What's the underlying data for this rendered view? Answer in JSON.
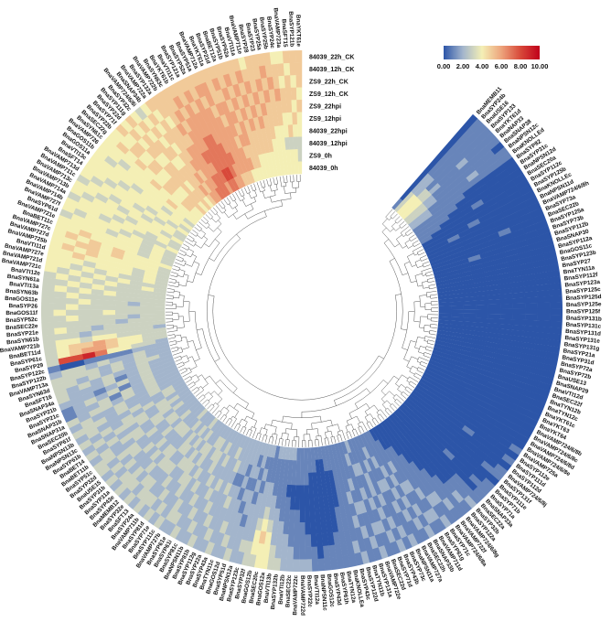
{
  "chart_data": {
    "type": "heatmap",
    "layout": "circular",
    "dendrogram": true,
    "color_scale": {
      "min": 0,
      "max": 10,
      "stops": [
        [
          0,
          "#2c55a8"
        ],
        [
          2,
          "#a3b5cc"
        ],
        [
          4,
          "#f4efb5"
        ],
        [
          6,
          "#eda47c"
        ],
        [
          8,
          "#d8493a"
        ],
        [
          10,
          "#c0001a"
        ]
      ],
      "tick_labels": [
        "0.00",
        "2.00",
        "4.00",
        "6.00",
        "8.00",
        "10.00"
      ],
      "legend_position": "top-right"
    },
    "tracks": [
      "84039_22h_CK",
      "84039_12h_CK",
      "ZS9_22h_CK",
      "ZS9_12h_CK",
      "ZS9_22hpi",
      "ZS9_12hpi",
      "84039_22hpi",
      "84039_12hpi",
      "ZS9_0h",
      "84039_0h"
    ],
    "rows": [
      [
        "BnaMEMB11",
        "0000000001"
      ],
      [
        "BnaSYP24b",
        "1111112233"
      ],
      [
        "BnaUSE16",
        "1111112244"
      ],
      [
        "BnaSYP133",
        "1111111344"
      ],
      [
        "BnaYKT61d",
        "1112112344"
      ],
      [
        "BnaNAP33",
        "1111111233"
      ],
      [
        "BnaSNAP38",
        "0111111233"
      ],
      [
        "BnaNPSN12c",
        "1112111122"
      ],
      [
        "BnaKNOLLEd",
        "1111111122"
      ],
      [
        "BnaSYP82",
        "0000011111"
      ],
      [
        "BnaSYP31c",
        "0000001111"
      ],
      [
        "BnaNPSN12d",
        "0000000111"
      ],
      [
        "BnaSEC20a",
        "0000100011"
      ],
      [
        "BnaSYP112c",
        "0000000001"
      ],
      [
        "BnaSYP125b",
        "0000000000"
      ],
      [
        "BnaKNOLLEc",
        "0000010000"
      ],
      [
        "BnaNPSN11d",
        "0000000100"
      ],
      [
        "BnaVAMP724/6/8h",
        "0000000000"
      ],
      [
        "BnaSYP73a",
        "0000000000"
      ],
      [
        "BnaSEC22b",
        "0001000000"
      ],
      [
        "BnaSYP125a",
        "0000000000"
      ],
      [
        "BnaSYP73b",
        "0000000000"
      ],
      [
        "BnaSYP112b",
        "0000001000"
      ],
      [
        "BnaSNAP30",
        "0000000000"
      ],
      [
        "BnaSYP112a",
        "0000000000"
      ],
      [
        "BnaGOS11c",
        "0000000000"
      ],
      [
        "BnaSYP123b",
        "0000000000"
      ],
      [
        "BnaSYP27",
        "0000000000"
      ],
      [
        "BnaTYN11a",
        "0000000000"
      ],
      [
        "BnaSYP112f",
        "0000000000"
      ],
      [
        "BnaSYP123a",
        "0000000000"
      ],
      [
        "BnaSYP125c",
        "0000000000"
      ],
      [
        "BnaSYP125d",
        "0000000000"
      ],
      [
        "BnaSYP125e",
        "0000000000"
      ],
      [
        "BnaSYP125f",
        "0000000000"
      ],
      [
        "BnaSYP131b",
        "0000000000"
      ],
      [
        "BnaSYP131c",
        "0000000000"
      ],
      [
        "BnaSYP131d",
        "0000000000"
      ],
      [
        "BnaSYP131e",
        "0000000000"
      ],
      [
        "BnaSYP131g",
        "0000000000"
      ],
      [
        "BnaSYP21a",
        "0000000000"
      ],
      [
        "BnaSYP31d",
        "0000000000"
      ],
      [
        "BnaSYP72a",
        "0000000000"
      ],
      [
        "BnaSYP72b",
        "0000000000"
      ],
      [
        "BnaUSE13",
        "0000000000"
      ],
      [
        "BnaSNAP29",
        "0000000000"
      ],
      [
        "BnaVTI12d",
        "0000000000"
      ],
      [
        "BnaSEC22f",
        "0000000000"
      ],
      [
        "BnaTYN12b",
        "0000000000"
      ],
      [
        "BnaTYN12c",
        "0000000000"
      ],
      [
        "BnaYKT61c",
        "0000000000"
      ],
      [
        "BnaYKT63",
        "0000000000"
      ],
      [
        "BnaYKT64",
        "0000000000"
      ],
      [
        "BnaVAMP724/6/8b",
        "0000000000"
      ],
      [
        "BnaVAMP724/6/8c",
        "0000000000"
      ],
      [
        "BnaVAMP724/6/8d",
        "0000000000"
      ],
      [
        "BnaVAMP724/6/8e",
        "0000000000"
      ],
      [
        "BnaVAMP725a",
        "1000000000"
      ],
      [
        "BnaSYP112e",
        "0000000000"
      ],
      [
        "BnaSYP111d",
        "1000100000"
      ],
      [
        "BnaSYP112d",
        "0000000000"
      ],
      [
        "BnaVAMP724/6/8j",
        "1000000000"
      ],
      [
        "BnaSYP131f",
        "1100000000"
      ],
      [
        "BnaSYP111e",
        "0000000000"
      ],
      [
        "BnaSYP71b",
        "1000000000"
      ],
      [
        "BnaSYP71a",
        "1100100000"
      ],
      [
        "BnaSNAP33a",
        "1000000000"
      ],
      [
        "BnaSEC22a",
        "1110000000"
      ],
      [
        "BnaSYP32b",
        "2110000000"
      ],
      [
        "BnaSYP122a",
        "1210000000"
      ],
      [
        "BnaVAMP724/6/8g",
        "1111000000"
      ],
      [
        "BnaVAMP722f",
        "1211100000"
      ],
      [
        "BnaVAMP724/6/8a",
        "1121110000"
      ],
      [
        "BnaSYP71c",
        "2121111000"
      ],
      [
        "BnaSYP61g",
        "1212111100"
      ],
      [
        "BnaVAMP711d",
        "1211211100"
      ],
      [
        "BnaSNAP33b",
        "2121212110"
      ],
      [
        "BnaSEC22h",
        "1212121111"
      ],
      [
        "BnaVAMP727a",
        "1121212111"
      ],
      [
        "BnaNPSN11a",
        "2112121211"
      ],
      [
        "BnaSYP73c",
        "1211121121"
      ],
      [
        "BnaSYP43b",
        "2121211211"
      ],
      [
        "BnaSYP71d",
        "1212122111"
      ],
      [
        "BnaSEC22d",
        "1121211211"
      ],
      [
        "BnaVAMP722e",
        "2121121212"
      ],
      [
        "BnaSYP131a",
        "1211211121"
      ],
      [
        "BnaTYN11b",
        "1121212111"
      ],
      [
        "BnaSYP122d",
        "2112121111"
      ],
      [
        "BnaSYP43c",
        "1211111111"
      ],
      [
        "BnaKNOLLEa",
        "1111111111"
      ],
      [
        "BnaTYN12a",
        "1111100011"
      ],
      [
        "BnaSYP61h",
        "1110000011"
      ],
      [
        "BnaSYP43d",
        "1100000001"
      ],
      [
        "BnaGOS12c",
        "1100000001"
      ],
      [
        "BnaNPSN11c",
        "1000000011"
      ],
      [
        "BnaVTI12a",
        "1100000011"
      ],
      [
        "BnaSYP22c",
        "2110000111"
      ],
      [
        "BnaVAMP722d",
        "2111000111"
      ],
      [
        "BnaVAMP722c",
        "2111100111"
      ],
      [
        "BnaSEC22c",
        "2211100112"
      ],
      [
        "BnaVTI12b",
        "2221110112"
      ],
      [
        "BnaSYP132b",
        "3222111112"
      ],
      [
        "BnaVTI13b",
        "3322211112"
      ],
      [
        "BnaGOS12a",
        "4443221112"
      ],
      [
        "BnaSEC20c",
        "4454322111"
      ],
      [
        "BnaGOS12b",
        "3443222112"
      ],
      [
        "BnaSYP32f",
        "3322221212"
      ],
      [
        "BnaSYP123c",
        "2322212122"
      ],
      [
        "BnaNPSN12a",
        "2221221212"
      ],
      [
        "BnaSYP51d",
        "3222121222"
      ],
      [
        "BnaGOS12d",
        "2322212122"
      ],
      [
        "BnaTYN11c",
        "2232221222"
      ],
      [
        "BnaSYP43a",
        "3222321222"
      ],
      [
        "BnaSYP22a",
        "2322232322"
      ],
      [
        "BnaSYP112g",
        "2232222232"
      ],
      [
        "BnaSYP81b",
        "3223232222"
      ],
      [
        "BnaNPSN11b",
        "2322322322"
      ],
      [
        "BnaSYP81c",
        "2232232232"
      ],
      [
        "BnaSYP61i",
        "3223223322"
      ],
      [
        "BnaSYP61e",
        "2322322332"
      ],
      [
        "BnaVAMP727b",
        "2332232232"
      ],
      [
        "BnaSYP111c",
        "3223323322"
      ],
      [
        "BnaSYP71e",
        "2322332322"
      ],
      [
        "BnaSYP81d",
        "3232233232"
      ],
      [
        "BnaVAMP711b",
        "2323232323"
      ],
      [
        "BnaSYP24a",
        "3322323232"
      ],
      [
        "BnaSFT13",
        "2332323322"
      ],
      [
        "BnaSYP32e",
        "3232332232"
      ],
      [
        "BnaMEMB12",
        "2323232323"
      ],
      [
        "BnaSYP43e",
        "3332322322"
      ],
      [
        "BnaSYP31a",
        "2322232322"
      ],
      [
        "BnaSYP31b",
        "3232323232"
      ],
      [
        "BnaUSE15",
        "2323222322"
      ],
      [
        "BnaSYP32d",
        "3233232322"
      ],
      [
        "BnaSYP51c",
        "3322323232"
      ],
      [
        "BnaBET11b",
        "2323323322"
      ],
      [
        "BnaBET14",
        "3232232332"
      ],
      [
        "BnaSYP61b",
        "2323332322"
      ],
      [
        "BnaNPSN13c",
        "3232323232"
      ],
      [
        "BnaNPSN13b",
        "2322232232"
      ],
      [
        "BnaSYP61f",
        "3332322322"
      ],
      [
        "BnaSEC20b",
        "2322322322"
      ],
      [
        "BnaSNAP31a",
        "3233232322"
      ],
      [
        "BnaSNAP31b",
        "1223132322"
      ],
      [
        "BnaSYP21c",
        "1232312322"
      ],
      [
        "BnaSYP21b",
        "2221232322"
      ],
      [
        "BnaSNAP34a",
        "3222312322"
      ],
      [
        "BnaSFT16",
        "3232322322"
      ],
      [
        "BnaSYN63d",
        "3323232332"
      ],
      [
        "BnaVAMP713a",
        "3333232322"
      ],
      [
        "BnaSYP122b",
        "2332322322"
      ],
      [
        "BnaSYP122c",
        "1001111222"
      ],
      [
        "BnaSYP29",
        "3889744332"
      ],
      [
        "BnaSYP61c",
        "3456654433"
      ],
      [
        "BnaBET11d",
        "3455654433"
      ],
      [
        "BnaVAMP721b",
        "3443443333"
      ],
      [
        "BnaSYN61b",
        "3332333332"
      ],
      [
        "BnaSYP21e",
        "3433233333"
      ],
      [
        "BnaSEC22e",
        "3333332333"
      ],
      [
        "BnaSYP52c",
        "3343333233"
      ],
      [
        "BnaGOS11f",
        "3433343333"
      ],
      [
        "BnaSYP26",
        "3343333333"
      ],
      [
        "BnaGOS11e",
        "3334333233"
      ],
      [
        "BnaSYN63b",
        "3343333333"
      ],
      [
        "BnaVTI13a",
        "3434343333"
      ],
      [
        "BnaSYN61a",
        "3343433333"
      ],
      [
        "BnaVTI12e",
        "3434343343"
      ],
      [
        "BnaVAMP721c",
        "4343434333"
      ],
      [
        "BnaVAMP721d",
        "4434343343"
      ],
      [
        "BnaVAMP727e",
        "4443444343"
      ],
      [
        "BnaVTI11d",
        "4454444343"
      ],
      [
        "BnaVAMP725b",
        "4545444443"
      ],
      [
        "BnaVAMP727d",
        "4455454443"
      ],
      [
        "BnaVAMP727c",
        "4545454444"
      ],
      [
        "BnaBET11c",
        "4454444343"
      ],
      [
        "BnaVAMP721e",
        "4444444343"
      ],
      [
        "BnaSYP61d",
        "3444344343"
      ],
      [
        "BnaVAMP727f",
        "4344434343"
      ],
      [
        "BnaVAMP714b",
        "4443443334"
      ],
      [
        "BnaVAMP714a",
        "3444344343"
      ],
      [
        "BnaVAMP713b",
        "4344434443"
      ],
      [
        "BnaVAMP713c",
        "4434344434"
      ],
      [
        "BnaVAMP711c",
        "3443443443"
      ],
      [
        "BnaVAMP713d",
        "4344434343"
      ],
      [
        "BnaSFT14",
        "4434443434"
      ],
      [
        "BnaVTI13c",
        "4443444443"
      ],
      [
        "BnaGOS11a",
        "4444344344"
      ],
      [
        "BnaGOS11b",
        "4344444443"
      ],
      [
        "BnaVAMP726",
        "4434444544"
      ],
      [
        "BnaSYN61c",
        "4444454444"
      ],
      [
        "BnaSEC22g",
        "4545445454"
      ],
      [
        "BnaSYP22b",
        "4454545454"
      ],
      [
        "BnaSYP71f",
        "5454545455"
      ],
      [
        "BnaSYP22d",
        "4545455554"
      ],
      [
        "BnaSYP111g",
        "5455455455"
      ],
      [
        "BnaSYP32c",
        "4545545554"
      ],
      [
        "BnaVAMP724/6/8i",
        "3454545565"
      ],
      [
        "BnaSNAP34b",
        "4545455656"
      ],
      [
        "BnaVAMP722a",
        "5455556566"
      ],
      [
        "BnaSYP132a",
        "5545566667"
      ],
      [
        "BnaVAMP722b",
        "5556566677"
      ],
      [
        "BnaSYN63c",
        "5565667677"
      ],
      [
        "BnaYKT61b",
        "5656667776"
      ],
      [
        "BnaVTI11c",
        "5566677787"
      ],
      [
        "BnaSYP121a",
        "5656677787"
      ],
      [
        "BnaSYP52a",
        "5566667776"
      ],
      [
        "BnaSYP51a",
        "5656666766"
      ],
      [
        "BnaVAMP712a",
        "5665666665"
      ],
      [
        "BnaYKT61a",
        "5556566665"
      ],
      [
        "BnaSYP21d",
        "5656665665"
      ],
      [
        "BnaBET12a",
        "5565656564"
      ],
      [
        "BnaSYP51b",
        "5656566554"
      ],
      [
        "BnaSYP62a",
        "5565655554"
      ],
      [
        "BnaVTI11a",
        "5656565544"
      ],
      [
        "BnaVAMP711e",
        "4565655544"
      ],
      [
        "BnaSYP28",
        "5556565544"
      ],
      [
        "BnaSYP23",
        "5565655544"
      ],
      [
        "BnaSYP25a",
        "5656555444"
      ],
      [
        "BnaSYP25b",
        "5565554444"
      ],
      [
        "BnaSYP24c",
        "4556554444"
      ],
      [
        "BnaVAMP723a",
        "4545544344"
      ],
      [
        "BnaSFT15",
        "5455545344"
      ],
      [
        "BnaSYP121b",
        "5545454344"
      ],
      [
        "BnaYKT61e",
        "5554544334"
      ]
    ]
  }
}
